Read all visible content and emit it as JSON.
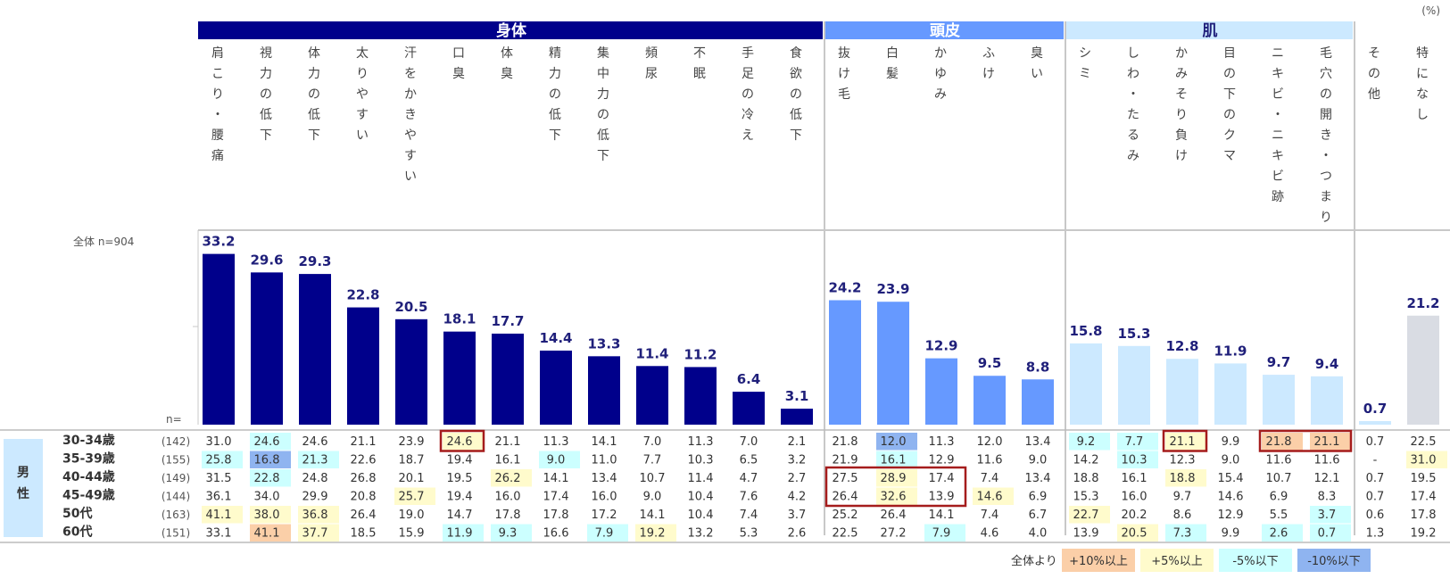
{
  "chart_data": {
    "type": "bar",
    "unit_label": "(%)",
    "total_label": "全体 n=904",
    "n_label": "n=",
    "groups": [
      {
        "name": "身体",
        "count": 13,
        "color": "#00008b",
        "text_color": "#ffffff"
      },
      {
        "name": "頭皮",
        "count": 5,
        "color": "#6699ff",
        "text_color": "#ffffff"
      },
      {
        "name": "肌",
        "count": 6,
        "color": "#cce9ff",
        "text_color": "#1f1f7a"
      },
      {
        "name": "",
        "count": 2,
        "color": "#ffffff",
        "text_color": "#1f1f7a"
      }
    ],
    "categories": [
      "肩こり・腰痛",
      "視力の低下",
      "体力の低下",
      "太りやすい",
      "汗をかきやすい",
      "口臭",
      "体臭",
      "精力の低下",
      "集中力の低下",
      "頻尿",
      "不眠",
      "手足の冷え",
      "食欲の低下",
      "抜け毛",
      "白髪",
      "かゆみ",
      "ふけ",
      "臭い",
      "シミ",
      "しわ・たるみ",
      "かみそり負け",
      "目の下のクマ",
      "ニキビ・ニキビ跡",
      "毛穴の開き・つまり",
      "その他",
      "特になし"
    ],
    "values": [
      33.2,
      29.6,
      29.3,
      22.8,
      20.5,
      18.1,
      17.7,
      14.4,
      13.3,
      11.4,
      11.2,
      6.4,
      3.1,
      24.2,
      23.9,
      12.9,
      9.5,
      8.8,
      15.8,
      15.3,
      12.8,
      11.9,
      9.7,
      9.4,
      0.7,
      21.2
    ],
    "value_labels": [
      "33.2",
      "29.6",
      "29.3",
      "22.8",
      "20.5",
      "18.1",
      "17.7",
      "14.4",
      "13.3",
      "11.4",
      "11.2",
      "6.4",
      "3.1",
      "24.2",
      "23.9",
      "12.9",
      "9.5",
      "8.8",
      "15.8",
      "15.3",
      "12.8",
      "11.9",
      "9.7",
      "9.4",
      "0.7",
      "21.2"
    ],
    "ylim": [
      0,
      40
    ],
    "bar_colors": {
      "身体": "#00008b",
      "頭皮": "#6699ff",
      "肌": "#cce9ff",
      "その他": "#cce9ff",
      "特になし": "#d9dce3"
    },
    "sex_label": "男性",
    "rows": [
      {
        "label": "30-34歳",
        "n": "(142)",
        "values": [
          "31.0",
          "24.6",
          "24.6",
          "21.1",
          "23.9",
          "24.6",
          "21.1",
          "11.3",
          "14.1",
          "7.0",
          "11.3",
          "7.0",
          "2.1",
          "21.8",
          "12.0",
          "11.3",
          "12.0",
          "13.4",
          "9.2",
          "7.7",
          "21.1",
          "9.9",
          "21.8",
          "21.1",
          "0.7",
          "22.5"
        ]
      },
      {
        "label": "35-39歳",
        "n": "(155)",
        "values": [
          "25.8",
          "16.8",
          "21.3",
          "22.6",
          "18.7",
          "19.4",
          "16.1",
          "9.0",
          "11.0",
          "7.7",
          "10.3",
          "6.5",
          "3.2",
          "21.9",
          "16.1",
          "12.9",
          "11.6",
          "9.0",
          "14.2",
          "10.3",
          "12.3",
          "9.0",
          "11.6",
          "11.6",
          "-",
          "31.0"
        ]
      },
      {
        "label": "40-44歳",
        "n": "(149)",
        "values": [
          "31.5",
          "22.8",
          "24.8",
          "26.8",
          "20.1",
          "19.5",
          "26.2",
          "14.1",
          "13.4",
          "10.7",
          "11.4",
          "4.7",
          "2.7",
          "27.5",
          "28.9",
          "17.4",
          "7.4",
          "13.4",
          "18.8",
          "16.1",
          "18.8",
          "15.4",
          "10.7",
          "12.1",
          "0.7",
          "19.5"
        ]
      },
      {
        "label": "45-49歳",
        "n": "(144)",
        "values": [
          "36.1",
          "34.0",
          "29.9",
          "20.8",
          "25.7",
          "19.4",
          "16.0",
          "17.4",
          "16.0",
          "9.0",
          "10.4",
          "7.6",
          "4.2",
          "26.4",
          "32.6",
          "13.9",
          "14.6",
          "6.9",
          "15.3",
          "16.0",
          "9.7",
          "14.6",
          "6.9",
          "8.3",
          "0.7",
          "17.4"
        ]
      },
      {
        "label": "50代",
        "n": "(163)",
        "values": [
          "41.1",
          "38.0",
          "36.8",
          "26.4",
          "19.0",
          "14.7",
          "17.8",
          "17.8",
          "17.2",
          "14.1",
          "10.4",
          "7.4",
          "3.7",
          "25.2",
          "26.4",
          "14.1",
          "7.4",
          "6.7",
          "22.7",
          "20.2",
          "8.6",
          "12.9",
          "5.5",
          "3.7",
          "0.6",
          "17.8"
        ]
      },
      {
        "label": "60代",
        "n": "(151)",
        "values": [
          "33.1",
          "41.1",
          "37.7",
          "18.5",
          "15.9",
          "11.9",
          "9.3",
          "16.6",
          "7.9",
          "19.2",
          "13.2",
          "5.3",
          "2.6",
          "22.5",
          "27.2",
          "7.9",
          "4.6",
          "4.0",
          "13.9",
          "20.5",
          "7.3",
          "9.9",
          "2.6",
          "0.7",
          "1.3",
          "19.2"
        ]
      }
    ],
    "legend": {
      "prefix": "全体より",
      "items": [
        {
          "label": "+10%以上",
          "color": "#fbcfa8"
        },
        {
          "label": "+5%以上",
          "color": "#fffbcc"
        },
        {
          "label": "-5%以下",
          "color": "#ccffff"
        },
        {
          "label": "-10%以下",
          "color": "#8fb4f0"
        }
      ]
    }
  }
}
